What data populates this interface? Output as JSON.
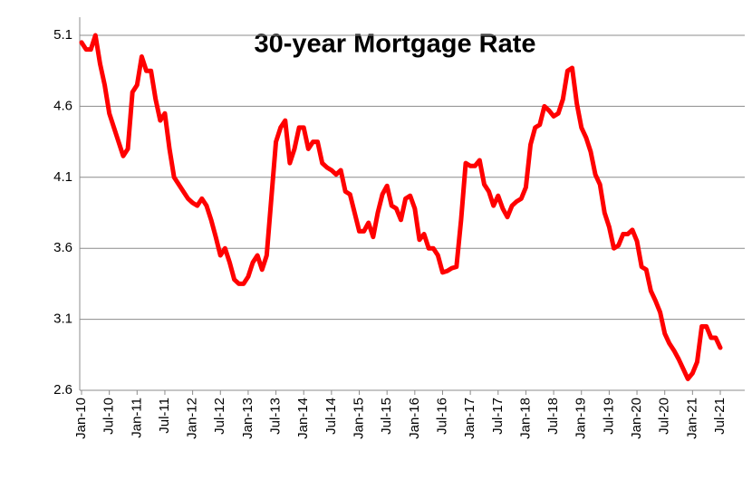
{
  "chart_data": {
    "type": "line",
    "title": "30-year Mortgage Rate",
    "categories": [
      "Jan-10",
      null,
      null,
      null,
      null,
      null,
      "Jul-10",
      null,
      null,
      null,
      null,
      null,
      "Jan-11",
      null,
      null,
      null,
      null,
      null,
      "Jul-11",
      null,
      null,
      null,
      null,
      null,
      "Jan-12",
      null,
      null,
      null,
      null,
      null,
      "Jul-12",
      null,
      null,
      null,
      null,
      null,
      "Jan-13",
      null,
      null,
      null,
      null,
      null,
      "Jul-13",
      null,
      null,
      null,
      null,
      null,
      "Jan-14",
      null,
      null,
      null,
      null,
      null,
      "Jul-14",
      null,
      null,
      null,
      null,
      null,
      "Jan-15",
      null,
      null,
      null,
      null,
      null,
      "Jul-15",
      null,
      null,
      null,
      null,
      null,
      "Jan-16",
      null,
      null,
      null,
      null,
      null,
      "Jul-16",
      null,
      null,
      null,
      null,
      null,
      "Jan-17",
      null,
      null,
      null,
      null,
      null,
      "Jul-17",
      null,
      null,
      null,
      null,
      null,
      "Jan-18",
      null,
      null,
      null,
      null,
      null,
      "Jul-18",
      null,
      null,
      null,
      null,
      null,
      "Jan-19",
      null,
      null,
      null,
      null,
      null,
      "Jul-19",
      null,
      null,
      null,
      null,
      null,
      "Jan-20",
      null,
      null,
      null,
      null,
      null,
      "Jul-20",
      null,
      null,
      null,
      null,
      null,
      "Jan-21",
      null,
      null,
      null,
      null,
      null,
      "Jul-21"
    ],
    "series": [
      {
        "color": "#ff0000",
        "values": [
          5.05,
          5.0,
          5.0,
          5.1,
          4.9,
          4.75,
          4.55,
          4.45,
          4.35,
          4.25,
          4.3,
          4.7,
          4.75,
          4.95,
          4.85,
          4.85,
          4.65,
          4.5,
          4.55,
          4.3,
          4.1,
          4.05,
          4.0,
          3.95,
          3.92,
          3.9,
          3.95,
          3.9,
          3.8,
          3.68,
          3.55,
          3.6,
          3.5,
          3.38,
          3.35,
          3.35,
          3.4,
          3.5,
          3.55,
          3.45,
          3.55,
          3.95,
          4.35,
          4.45,
          4.5,
          4.2,
          4.3,
          4.45,
          4.45,
          4.3,
          4.35,
          4.35,
          4.2,
          4.17,
          4.15,
          4.12,
          4.15,
          4.0,
          3.98,
          3.85,
          3.72,
          3.72,
          3.78,
          3.68,
          3.85,
          3.98,
          4.04,
          3.9,
          3.88,
          3.8,
          3.95,
          3.97,
          3.88,
          3.66,
          3.7,
          3.6,
          3.6,
          3.55,
          3.43,
          3.44,
          3.46,
          3.47,
          3.8,
          4.2,
          4.18,
          4.18,
          4.22,
          4.05,
          4.0,
          3.9,
          3.97,
          3.88,
          3.82,
          3.9,
          3.93,
          3.95,
          4.03,
          4.33,
          4.45,
          4.47,
          4.6,
          4.57,
          4.53,
          4.55,
          4.65,
          4.85,
          4.87,
          4.62,
          4.45,
          4.38,
          4.28,
          4.12,
          4.05,
          3.85,
          3.75,
          3.6,
          3.62,
          3.7,
          3.7,
          3.73,
          3.65,
          3.47,
          3.45,
          3.3,
          3.23,
          3.15,
          3.0,
          2.93,
          2.88,
          2.82,
          2.75,
          2.68,
          2.72,
          2.8,
          3.05,
          3.05,
          2.97,
          2.97,
          2.9
        ]
      }
    ],
    "ylim": [
      2.6,
      5.1
    ],
    "yticks": [
      2.6,
      3.1,
      3.6,
      4.1,
      4.6,
      5.1
    ],
    "grid": true
  }
}
